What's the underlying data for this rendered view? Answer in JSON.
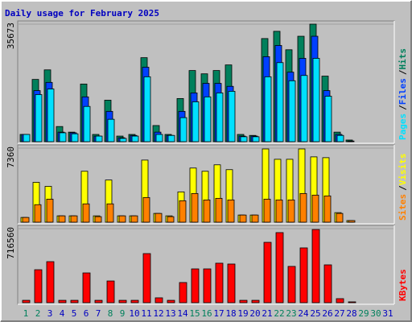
{
  "title": "Daily usage for February 2025",
  "separator": "/",
  "chart_data": [
    {
      "type": "bar",
      "ylim": [
        0,
        35673
      ],
      "yticks": [
        35673
      ],
      "legend": "right",
      "series": [
        {
          "name": "Hits",
          "color": "#00805c",
          "values": [
            2200,
            18900,
            21800,
            4600,
            2900,
            17500,
            2200,
            12600,
            1700,
            2200,
            25500,
            4900,
            2200,
            13100,
            21600,
            20600,
            21600,
            23300,
            2200,
            1900,
            31300,
            33500,
            27900,
            32000,
            35673,
            19900,
            2900,
            500,
            0,
            0,
            0
          ]
        },
        {
          "name": "Files",
          "color": "#0040ff",
          "values": [
            2200,
            15500,
            18000,
            2900,
            2700,
            13600,
            1700,
            9200,
            1200,
            1900,
            22600,
            2900,
            1900,
            9200,
            14800,
            17700,
            17700,
            16800,
            1700,
            1700,
            25800,
            29200,
            21100,
            25300,
            32000,
            15500,
            2200,
            200,
            0,
            0,
            0
          ]
        },
        {
          "name": "Pages",
          "color": "#00e0ff",
          "values": [
            2200,
            14300,
            16000,
            2700,
            2400,
            10700,
            1700,
            6800,
            1000,
            1700,
            19700,
            2200,
            1900,
            7300,
            12100,
            13600,
            14800,
            15300,
            1500,
            1500,
            19700,
            24000,
            18500,
            20100,
            25300,
            13800,
            1900,
            0,
            0,
            0,
            0
          ]
        }
      ]
    },
    {
      "type": "bar",
      "ylim": [
        0,
        7360
      ],
      "yticks": [
        7360
      ],
      "legend": "right",
      "series": [
        {
          "name": "Visits",
          "color": "#ffff00",
          "values": [
            470,
            3960,
            3560,
            630,
            630,
            5060,
            630,
            4190,
            630,
            630,
            6170,
            870,
            630,
            3010,
            5380,
            5060,
            5700,
            5220,
            710,
            710,
            7280,
            6250,
            6250,
            7280,
            6490,
            6410,
            950,
            160,
            0,
            0,
            0
          ]
        },
        {
          "name": "Sites",
          "color": "#ff8000",
          "values": [
            470,
            1740,
            2290,
            630,
            630,
            1820,
            550,
            1820,
            630,
            630,
            2450,
            870,
            550,
            2130,
            2850,
            2210,
            2370,
            2210,
            710,
            710,
            2290,
            2210,
            2210,
            2850,
            2690,
            2610,
            870,
            160,
            0,
            0,
            0
          ]
        }
      ]
    },
    {
      "type": "bar",
      "ylim": [
        0,
        716560
      ],
      "yticks": [
        716560
      ],
      "legend": "right",
      "categories": [
        "1",
        "2",
        "3",
        "4",
        "5",
        "6",
        "7",
        "8",
        "9",
        "10",
        "11",
        "12",
        "13",
        "14",
        "15",
        "16",
        "17",
        "18",
        "19",
        "20",
        "21",
        "22",
        "23",
        "24",
        "25",
        "26",
        "27",
        "28",
        "29",
        "30",
        "31"
      ],
      "category_colors": [
        "#00805c",
        "#00805c",
        "#0000c0",
        "#0000c0",
        "#0000c0",
        "#0000c0",
        "#0000c0",
        "#00805c",
        "#00805c",
        "#0000c0",
        "#0000c0",
        "#0000c0",
        "#0000c0",
        "#0000c0",
        "#00805c",
        "#00805c",
        "#0000c0",
        "#0000c0",
        "#0000c0",
        "#0000c0",
        "#0000c0",
        "#00805c",
        "#00805c",
        "#0000c0",
        "#0000c0",
        "#0000c0",
        "#0000c0",
        "#0000c0",
        "#00805c",
        "#00805c",
        "#0000c0"
      ],
      "series": [
        {
          "name": "KBytes",
          "color": "#ff0000",
          "values": [
            23000,
            319000,
            397000,
            23000,
            23000,
            288000,
            23000,
            210000,
            23000,
            23000,
            475000,
            47000,
            23000,
            195000,
            327000,
            327000,
            382000,
            374000,
            23000,
            23000,
            584000,
            678000,
            351000,
            530000,
            708000,
            366000,
            39000,
            8000,
            0,
            0,
            0
          ]
        }
      ]
    }
  ]
}
